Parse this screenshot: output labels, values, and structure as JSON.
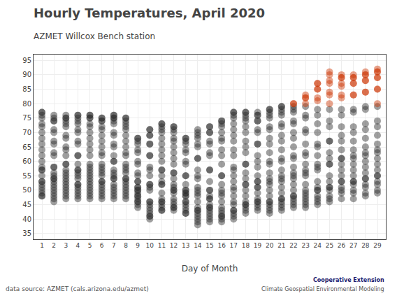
{
  "chart_data": {
    "type": "scatter",
    "title": "Hourly Temperatures, April 2020",
    "subtitle": "AZMET Willcox Bench station",
    "xlabel": "Day of Month",
    "annotations": [
      "data source: AZMET (cals.arizona.edu/azmet)",
      "Cooperative Extension",
      "Climate Geospatial Environmental Modeling"
    ],
    "series": [
      {
        "color": "#2a2a2a",
        "x": [
          1,
          2,
          3,
          4,
          5,
          6,
          7,
          8,
          9,
          10,
          11,
          12,
          13,
          14,
          15,
          16,
          17,
          18,
          19,
          20,
          21,
          22,
          23,
          24,
          25,
          26,
          27,
          28,
          29
        ],
        "values": [
          [
            53,
            52,
            51,
            50,
            49,
            48,
            48,
            53,
            57,
            62,
            66,
            70,
            73,
            76,
            77,
            77,
            75,
            72,
            68,
            64,
            60,
            58,
            57,
            55
          ],
          [
            54,
            52,
            51,
            50,
            49,
            48,
            47,
            46,
            53,
            58,
            63,
            67,
            71,
            74,
            75,
            76,
            74,
            70,
            66,
            62,
            58,
            56,
            55,
            54
          ],
          [
            53,
            52,
            51,
            50,
            49,
            48,
            47,
            54,
            59,
            64,
            68,
            72,
            74,
            75,
            76,
            75,
            73,
            69,
            65,
            62,
            59,
            57,
            56,
            55
          ],
          [
            54,
            52,
            51,
            50,
            49,
            48,
            47,
            52,
            57,
            62,
            67,
            71,
            74,
            76,
            76,
            75,
            73,
            70,
            66,
            62,
            59,
            57,
            56,
            55
          ],
          [
            54,
            52,
            51,
            50,
            49,
            48,
            47,
            53,
            58,
            64,
            68,
            72,
            75,
            76,
            76,
            75,
            73,
            70,
            66,
            62,
            59,
            57,
            56,
            55
          ],
          [
            53,
            52,
            51,
            50,
            49,
            48,
            47,
            53,
            58,
            63,
            67,
            71,
            74,
            75,
            75,
            74,
            72,
            69,
            65,
            62,
            59,
            57,
            56,
            55
          ],
          [
            54,
            52,
            51,
            50,
            49,
            48,
            47,
            54,
            60,
            65,
            69,
            73,
            75,
            76,
            76,
            75,
            74,
            70,
            66,
            62,
            60,
            57,
            56,
            55
          ],
          [
            54,
            52,
            51,
            50,
            49,
            48,
            47,
            53,
            58,
            63,
            67,
            71,
            73,
            75,
            75,
            74,
            72,
            69,
            65,
            62,
            59,
            57,
            56,
            54
          ],
          [
            53,
            51,
            50,
            48,
            47,
            46,
            45,
            44,
            46,
            50,
            55,
            60,
            64,
            67,
            68,
            68,
            66,
            63,
            59,
            56,
            53,
            51,
            49,
            48
          ],
          [
            46,
            45,
            44,
            43,
            42,
            41,
            40,
            41,
            46,
            52,
            57,
            62,
            66,
            69,
            71,
            71,
            69,
            66,
            62,
            58,
            55,
            52,
            51,
            50
          ],
          [
            49,
            47,
            46,
            45,
            44,
            43,
            43,
            46,
            52,
            57,
            62,
            66,
            70,
            72,
            73,
            73,
            71,
            68,
            64,
            60,
            57,
            55,
            53,
            52
          ],
          [
            50,
            49,
            47,
            46,
            45,
            44,
            43,
            44,
            50,
            56,
            61,
            65,
            68,
            71,
            72,
            72,
            70,
            67,
            63,
            59,
            56,
            54,
            52,
            51
          ],
          [
            49,
            48,
            46,
            45,
            44,
            43,
            42,
            42,
            46,
            50,
            55,
            60,
            64,
            67,
            68,
            68,
            66,
            63,
            59,
            55,
            52,
            50,
            49,
            48
          ],
          [
            46,
            44,
            43,
            42,
            41,
            40,
            39,
            38,
            43,
            49,
            55,
            61,
            65,
            68,
            70,
            71,
            69,
            66,
            61,
            57,
            54,
            51,
            50,
            48
          ],
          [
            47,
            45,
            44,
            43,
            42,
            41,
            40,
            39,
            44,
            50,
            57,
            63,
            67,
            70,
            72,
            72,
            70,
            66,
            62,
            57,
            53,
            50,
            48,
            47
          ],
          [
            46,
            44,
            43,
            42,
            41,
            40,
            39,
            41,
            48,
            55,
            62,
            67,
            70,
            73,
            74,
            74,
            72,
            68,
            64,
            59,
            55,
            52,
            50,
            49
          ],
          [
            48,
            46,
            45,
            43,
            42,
            41,
            40,
            43,
            50,
            57,
            64,
            69,
            73,
            76,
            77,
            77,
            75,
            71,
            67,
            62,
            58,
            55,
            53,
            51
          ],
          [
            50,
            48,
            46,
            45,
            44,
            43,
            42,
            45,
            52,
            59,
            65,
            70,
            74,
            76,
            77,
            77,
            75,
            72,
            67,
            63,
            59,
            56,
            54,
            52
          ],
          [
            51,
            49,
            47,
            46,
            45,
            44,
            43,
            46,
            53,
            60,
            66,
            71,
            74,
            76,
            77,
            76,
            74,
            70,
            66,
            62,
            58,
            55,
            53,
            51
          ],
          [
            50,
            48,
            46,
            45,
            44,
            43,
            42,
            46,
            53,
            60,
            66,
            71,
            75,
            77,
            78,
            78,
            76,
            72,
            68,
            63,
            59,
            56,
            54,
            52
          ],
          [
            51,
            49,
            47,
            46,
            45,
            44,
            43,
            47,
            54,
            61,
            67,
            72,
            76,
            78,
            79,
            79,
            77,
            73,
            69,
            64,
            60,
            57,
            55,
            53
          ],
          [
            52,
            50,
            48,
            47,
            46,
            45,
            44,
            48,
            55,
            62,
            68,
            73,
            77,
            79,
            78,
            74,
            70,
            65,
            61,
            58,
            56,
            54
          ],
          [
            52,
            50,
            49,
            47,
            46,
            45,
            44,
            48,
            56,
            63,
            70,
            75,
            79,
            76,
            71,
            66,
            62,
            59,
            57,
            55
          ],
          [
            53,
            51,
            50,
            48,
            47,
            46,
            45,
            50,
            58,
            66,
            73,
            78,
            76,
            70,
            65,
            62,
            59,
            57
          ],
          [
            55,
            53,
            51,
            50,
            48,
            47,
            46,
            51,
            59,
            67,
            74,
            78,
            72,
            67,
            63,
            61,
            59
          ],
          [
            57,
            55,
            53,
            51,
            50,
            49,
            47,
            53,
            61,
            69,
            76,
            78,
            72,
            67,
            64,
            61,
            59
          ],
          [
            57,
            55,
            53,
            52,
            50,
            49,
            47,
            53,
            62,
            70,
            77,
            78,
            72,
            67,
            64,
            61,
            59
          ],
          [
            58,
            56,
            54,
            52,
            51,
            49,
            48,
            54,
            63,
            71,
            78,
            79,
            73,
            68,
            65,
            62,
            60
          ],
          [
            59,
            57,
            55,
            53,
            52,
            50,
            49,
            55,
            64,
            72,
            79,
            74,
            69,
            66,
            63,
            61
          ]
        ]
      },
      {
        "color": "#cc3300",
        "x": [
          22,
          23,
          24,
          25,
          26,
          27,
          28,
          29
        ],
        "values": [
          [
            80,
            80
          ],
          [
            82,
            83,
            82,
            80
          ],
          [
            82,
            85,
            87,
            87,
            85,
            81
          ],
          [
            80,
            84,
            87,
            91,
            90,
            88,
            83
          ],
          [
            82,
            86,
            89,
            90,
            89,
            87,
            83
          ],
          [
            83,
            87,
            89,
            90,
            89,
            87,
            83
          ],
          [
            84,
            88,
            90,
            91,
            90,
            88,
            84
          ],
          [
            85,
            89,
            91,
            92,
            91,
            89,
            85,
            80
          ]
        ]
      }
    ],
    "xlim": [
      0.3,
      29.7
    ],
    "xticks": [
      1,
      2,
      3,
      4,
      5,
      6,
      7,
      8,
      9,
      10,
      11,
      12,
      13,
      14,
      15,
      16,
      17,
      18,
      19,
      20,
      21,
      22,
      23,
      24,
      25,
      26,
      27,
      28,
      29
    ],
    "ylim": [
      33,
      97
    ],
    "yticks": [
      35,
      40,
      45,
      50,
      55,
      60,
      65,
      70,
      75,
      80,
      85,
      90,
      95
    ],
    "grid": true
  }
}
